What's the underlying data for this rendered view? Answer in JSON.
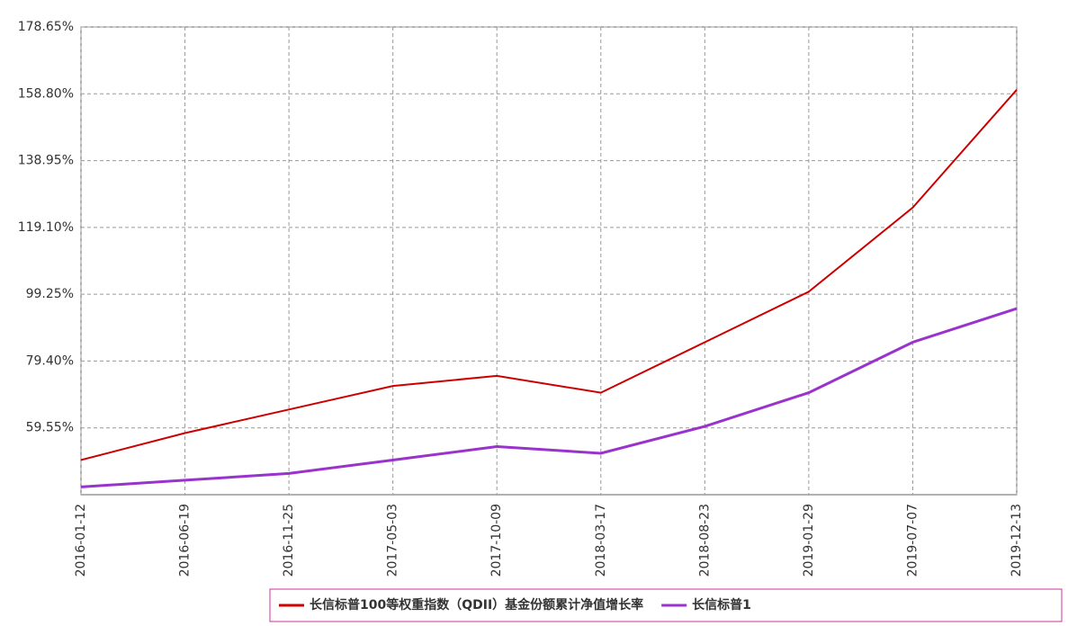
{
  "chart_data": {
    "type": "line",
    "categories": [
      "2016-01-12",
      "2016-06-19",
      "2016-11-25",
      "2017-05-03",
      "2017-10-09",
      "2018-03-17",
      "2018-08-23",
      "2019-01-29",
      "2019-07-07",
      "2019-12-13"
    ],
    "series": [
      {
        "name": "长信标普100等权重指数（QDII）基金份额累计净值增长率",
        "color": "#cc0000",
        "values": [
          50,
          58,
          65,
          72,
          75,
          70,
          85,
          100,
          125,
          160
        ]
      },
      {
        "name": "长信标普1",
        "color": "#9933cc",
        "values": [
          42,
          44,
          46,
          50,
          54,
          52,
          60,
          70,
          85,
          95
        ]
      }
    ],
    "ylim": [
      39.7,
      178.65
    ],
    "yticks": [
      {
        "value": 59.55,
        "label": "59.55%"
      },
      {
        "value": 79.4,
        "label": "79.40%"
      },
      {
        "value": 99.25,
        "label": "99.25%"
      },
      {
        "value": 119.1,
        "label": "119.10%"
      },
      {
        "value": 138.95,
        "label": "138.95%"
      },
      {
        "value": 158.8,
        "label": "158.80%"
      },
      {
        "value": 178.65,
        "label": "178.65%"
      }
    ],
    "grid": true
  }
}
